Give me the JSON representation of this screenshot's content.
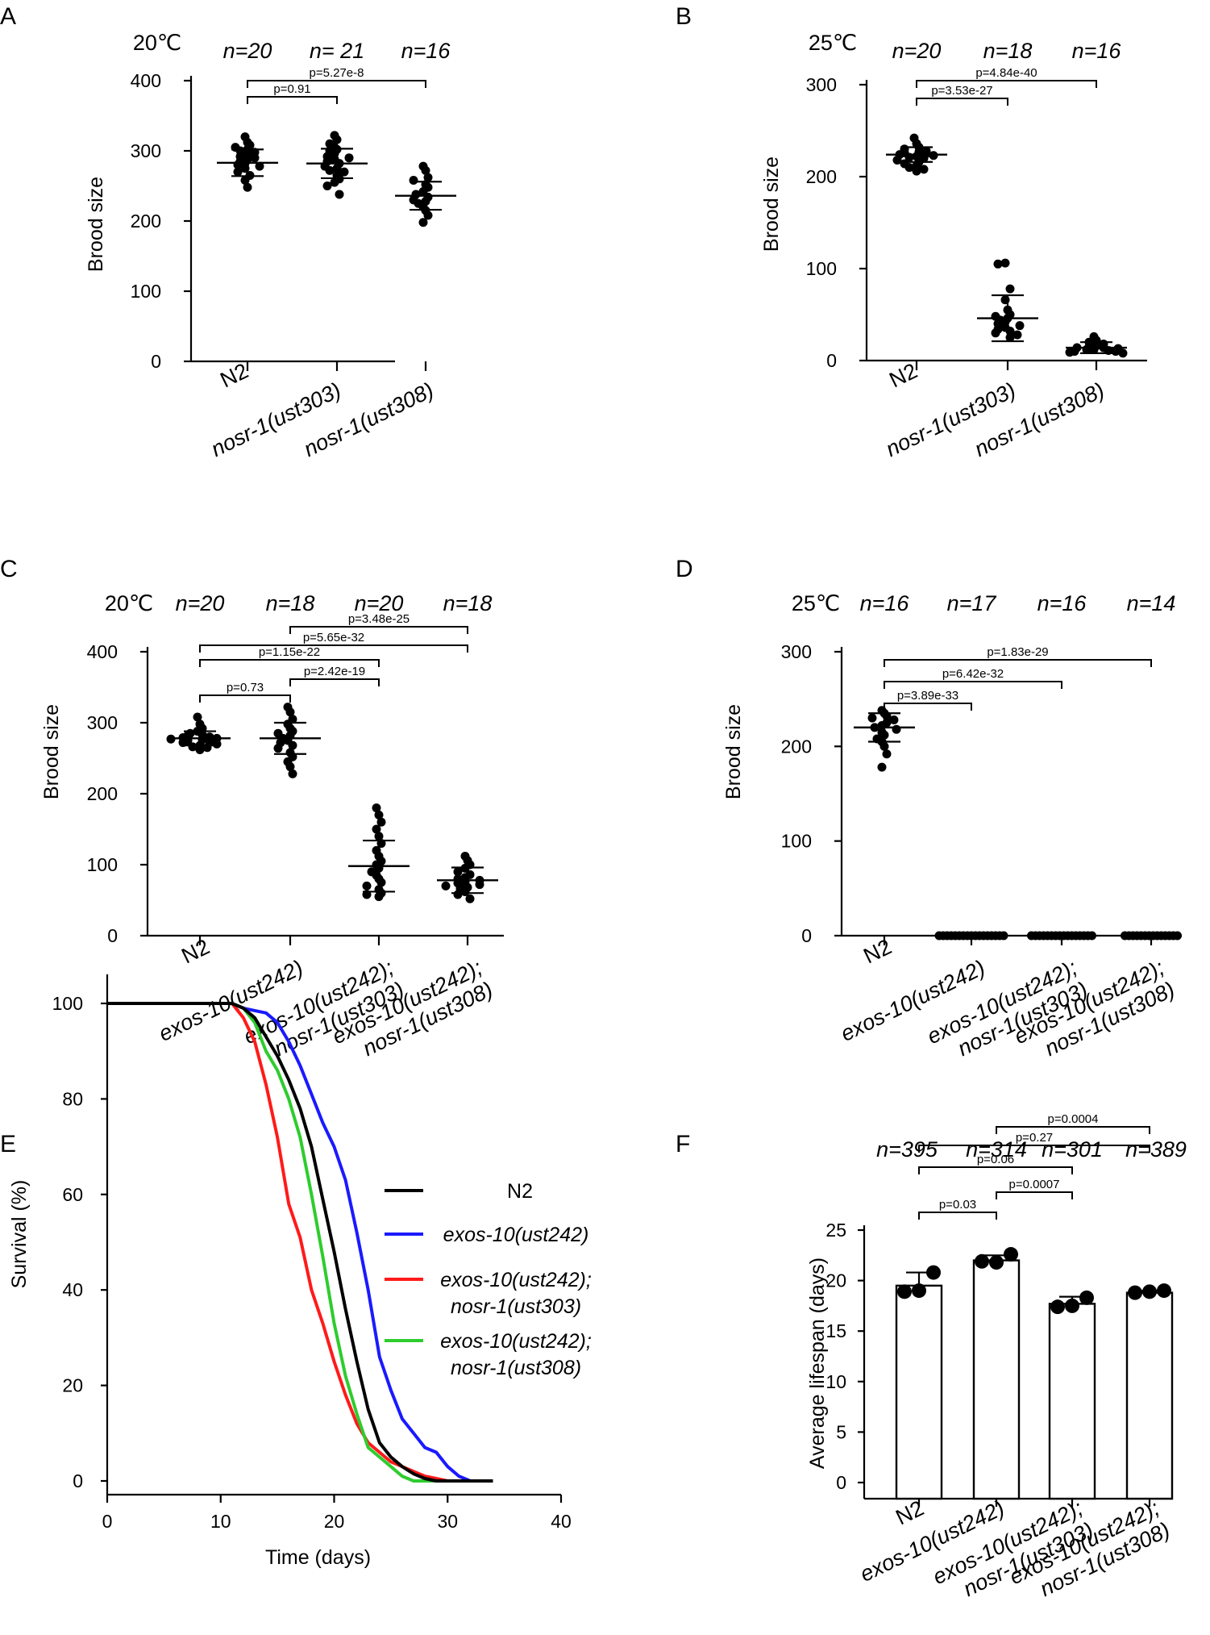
{
  "chart_data": [
    {
      "panel": "A",
      "type": "scatter",
      "title": "20℃",
      "ylabel": "Brood size",
      "ylim": [
        0,
        400
      ],
      "yticks": [
        0,
        100,
        200,
        300,
        400
      ],
      "categories": [
        "N2",
        "nosr-1(ust303)",
        "nosr-1(ust308)"
      ],
      "n_labels": [
        "n=20",
        "n= 21",
        "n=16"
      ],
      "means": [
        283,
        282,
        236
      ],
      "sd": [
        19,
        21,
        20
      ],
      "points": [
        [
          320,
          312,
          308,
          305,
          302,
          300,
          298,
          295,
          292,
          290,
          288,
          285,
          282,
          280,
          278,
          275,
          270,
          265,
          258,
          248
        ],
        [
          322,
          316,
          310,
          305,
          302,
          300,
          296,
          292,
          290,
          288,
          285,
          282,
          278,
          275,
          272,
          270,
          265,
          260,
          255,
          250,
          238
        ],
        [
          278,
          272,
          262,
          258,
          252,
          248,
          242,
          238,
          234,
          230,
          228,
          225,
          220,
          215,
          208,
          198
        ]
      ],
      "comparisons": [
        {
          "from": 0,
          "to": 1,
          "label": "p=0.91"
        },
        {
          "from": 0,
          "to": 2,
          "label": "p=5.27e-8"
        }
      ]
    },
    {
      "panel": "B",
      "type": "scatter",
      "title": "25℃",
      "ylabel": "Brood size",
      "ylim": [
        0,
        300
      ],
      "yticks": [
        0,
        100,
        200,
        300
      ],
      "categories": [
        "N2",
        "nosr-1(ust303)",
        "nosr-1(ust308)"
      ],
      "n_labels": [
        "n=20",
        "n=18",
        "n=16"
      ],
      "means": [
        224,
        46,
        14
      ],
      "sd": [
        8,
        25,
        6
      ],
      "points": [
        [
          242,
          236,
          232,
          230,
          228,
          227,
          226,
          225,
          224,
          223,
          222,
          221,
          220,
          218,
          216,
          214,
          212,
          210,
          208,
          206
        ],
        [
          106,
          105,
          78,
          66,
          55,
          50,
          48,
          46,
          44,
          42,
          40,
          38,
          36,
          34,
          32,
          30,
          28,
          25
        ],
        [
          26,
          22,
          20,
          18,
          16,
          15,
          14,
          14,
          13,
          12,
          12,
          11,
          10,
          10,
          9,
          8
        ]
      ],
      "comparisons": [
        {
          "from": 0,
          "to": 1,
          "label": "p=3.53e-27"
        },
        {
          "from": 0,
          "to": 2,
          "label": "p=4.84e-40"
        }
      ]
    },
    {
      "panel": "C",
      "type": "scatter",
      "title": "20℃",
      "ylabel": "Brood size",
      "ylim": [
        0,
        400
      ],
      "yticks": [
        0,
        100,
        200,
        300,
        400
      ],
      "categories": [
        "N2",
        "exos-10(ust242)",
        "exos-10(ust242); nosr-1(ust303)",
        "exos-10(ust242); nosr-1(ust308)"
      ],
      "n_labels": [
        "n=20",
        "n=18",
        "n=20",
        "n=18"
      ],
      "means": [
        278,
        278,
        98,
        78
      ],
      "sd": [
        10,
        22,
        36,
        18
      ],
      "points": [
        [
          308,
          298,
          292,
          288,
          285,
          283,
          282,
          280,
          279,
          278,
          277,
          276,
          275,
          274,
          272,
          270,
          268,
          266,
          265,
          262
        ],
        [
          322,
          315,
          305,
          298,
          292,
          288,
          285,
          282,
          278,
          275,
          272,
          268,
          264,
          258,
          252,
          245,
          238,
          228
        ],
        [
          180,
          170,
          160,
          150,
          140,
          130,
          120,
          112,
          105,
          100,
          95,
          90,
          85,
          80,
          75,
          70,
          65,
          60,
          58,
          55
        ],
        [
          112,
          106,
          100,
          95,
          90,
          86,
          82,
          80,
          78,
          76,
          74,
          72,
          70,
          68,
          66,
          62,
          58,
          52
        ]
      ],
      "comparisons": [
        {
          "from": 0,
          "to": 1,
          "label": "p=0.73"
        },
        {
          "from": 1,
          "to": 2,
          "label": "p=2.42e-19"
        },
        {
          "from": 0,
          "to": 2,
          "label": "p=1.15e-22"
        },
        {
          "from": 0,
          "to": 3,
          "label": "p=5.65e-32"
        },
        {
          "from": 1,
          "to": 3,
          "label": "p=3.48e-25"
        }
      ]
    },
    {
      "panel": "D",
      "type": "scatter",
      "title": "25℃",
      "ylabel": "Brood size",
      "ylim": [
        0,
        300
      ],
      "yticks": [
        0,
        100,
        200,
        300
      ],
      "categories": [
        "N2",
        "exos-10(ust242)",
        "exos-10(ust242); nosr-1(ust303)",
        "exos-10(ust242); nosr-1(ust308)"
      ],
      "n_labels": [
        "n=16",
        "n=17",
        "n=16",
        "n=14"
      ],
      "means": [
        220,
        0,
        0,
        0
      ],
      "sd": [
        15,
        0,
        0,
        0
      ],
      "points": [
        [
          238,
          235,
          232,
          230,
          228,
          225,
          222,
          220,
          218,
          215,
          212,
          208,
          205,
          200,
          192,
          178
        ],
        [
          0,
          0,
          0,
          0,
          0,
          0,
          0,
          0,
          0,
          0,
          0,
          0,
          0,
          0,
          0,
          0,
          0
        ],
        [
          0,
          0,
          0,
          0,
          0,
          0,
          0,
          0,
          0,
          0,
          0,
          0,
          0,
          0,
          0,
          0
        ],
        [
          0,
          0,
          0,
          0,
          0,
          0,
          0,
          0,
          0,
          0,
          0,
          0,
          0,
          0
        ]
      ],
      "comparisons": [
        {
          "from": 0,
          "to": 1,
          "label": "p=3.89e-33"
        },
        {
          "from": 0,
          "to": 2,
          "label": "p=6.42e-32"
        },
        {
          "from": 0,
          "to": 3,
          "label": "p=1.83e-29"
        }
      ]
    },
    {
      "panel": "E",
      "type": "line",
      "xlabel": "Time (days)",
      "ylabel": "Survival (%)",
      "xlim": [
        0,
        40
      ],
      "ylim": [
        0,
        100
      ],
      "xticks": [
        0,
        10,
        20,
        30,
        40
      ],
      "yticks": [
        0,
        20,
        40,
        60,
        80,
        100
      ],
      "series": [
        {
          "name": "N2",
          "color": "#000000",
          "points": [
            [
              0,
              100
            ],
            [
              11,
              100
            ],
            [
              12,
              99
            ],
            [
              13,
              97
            ],
            [
              14,
              93
            ],
            [
              15,
              89
            ],
            [
              16,
              84
            ],
            [
              17,
              78
            ],
            [
              18,
              70
            ],
            [
              19,
              59
            ],
            [
              20,
              48
            ],
            [
              21,
              36
            ],
            [
              22,
              25
            ],
            [
              23,
              15
            ],
            [
              24,
              8
            ],
            [
              25,
              5
            ],
            [
              26,
              3
            ],
            [
              27,
              1.5
            ],
            [
              28,
              0.5
            ],
            [
              29,
              0
            ]
          ]
        },
        {
          "name": "exos-10(ust242)",
          "color": "#1a1aff",
          "points": [
            [
              0,
              100
            ],
            [
              11,
              100
            ],
            [
              12,
              99
            ],
            [
              13,
              98.5
            ],
            [
              14,
              98
            ],
            [
              15,
              96
            ],
            [
              16,
              92
            ],
            [
              17,
              87
            ],
            [
              18,
              81
            ],
            [
              19,
              75
            ],
            [
              20,
              70
            ],
            [
              21,
              63
            ],
            [
              22,
              52
            ],
            [
              23,
              40
            ],
            [
              24,
              26
            ],
            [
              25,
              19
            ],
            [
              26,
              13
            ],
            [
              27,
              10
            ],
            [
              28,
              7
            ],
            [
              29,
              6
            ],
            [
              30,
              3
            ],
            [
              31,
              1
            ],
            [
              32,
              0
            ]
          ]
        },
        {
          "name": "exos-10(ust242); nosr-1(ust303)",
          "color": "#ff1a1a",
          "points": [
            [
              0,
              100
            ],
            [
              11,
              100
            ],
            [
              12,
              97
            ],
            [
              13,
              92
            ],
            [
              14,
              83
            ],
            [
              15,
              72
            ],
            [
              16,
              58
            ],
            [
              17,
              51
            ],
            [
              18,
              40
            ],
            [
              19,
              33
            ],
            [
              20,
              25
            ],
            [
              21,
              18
            ],
            [
              22,
              12
            ],
            [
              23,
              8
            ],
            [
              24,
              6
            ],
            [
              25,
              4
            ],
            [
              26,
              3
            ],
            [
              27,
              2
            ],
            [
              28,
              1
            ],
            [
              29,
              0.5
            ],
            [
              30,
              0
            ]
          ]
        },
        {
          "name": "exos-10(ust242); nosr-1(ust308)",
          "color": "#2ecc2e",
          "points": [
            [
              0,
              100
            ],
            [
              11,
              100
            ],
            [
              12,
              99
            ],
            [
              13,
              96
            ],
            [
              14,
              90
            ],
            [
              15,
              86
            ],
            [
              16,
              80
            ],
            [
              17,
              72
            ],
            [
              18,
              60
            ],
            [
              19,
              47
            ],
            [
              20,
              33
            ],
            [
              21,
              22
            ],
            [
              22,
              14
            ],
            [
              23,
              7
            ],
            [
              24,
              5
            ],
            [
              25,
              3
            ],
            [
              26,
              1
            ],
            [
              27,
              0
            ]
          ]
        }
      ]
    },
    {
      "panel": "F",
      "type": "bar",
      "ylabel": "Average lifespan (days)",
      "ylim": [
        0,
        25
      ],
      "yticks": [
        0,
        5,
        10,
        15,
        20,
        25
      ],
      "categories": [
        "N2",
        "exos-10(ust242)",
        "exos-10(ust242); nosr-1(ust303)",
        "exos-10(ust242); nosr-1(ust308)"
      ],
      "n_labels": [
        "n=395",
        "n=314",
        "n=301",
        "n=389"
      ],
      "values": [
        19.5,
        22.0,
        17.7,
        18.8
      ],
      "sd": [
        1.3,
        0.5,
        0.7,
        0.2
      ],
      "points": [
        [
          18.9,
          19.0,
          20.8
        ],
        [
          21.9,
          21.8,
          22.6
        ],
        [
          17.4,
          17.5,
          18.3
        ],
        [
          18.8,
          18.9,
          19.0
        ]
      ],
      "comparisons": [
        {
          "from": 0,
          "to": 1,
          "label": "p=0.03"
        },
        {
          "from": 1,
          "to": 2,
          "label": "p=0.0007"
        },
        {
          "from": 0,
          "to": 2,
          "label": "p=0.06"
        },
        {
          "from": 0,
          "to": 3,
          "label": "p=0.27"
        },
        {
          "from": 1,
          "to": 3,
          "label": "p=0.0004"
        }
      ]
    }
  ]
}
